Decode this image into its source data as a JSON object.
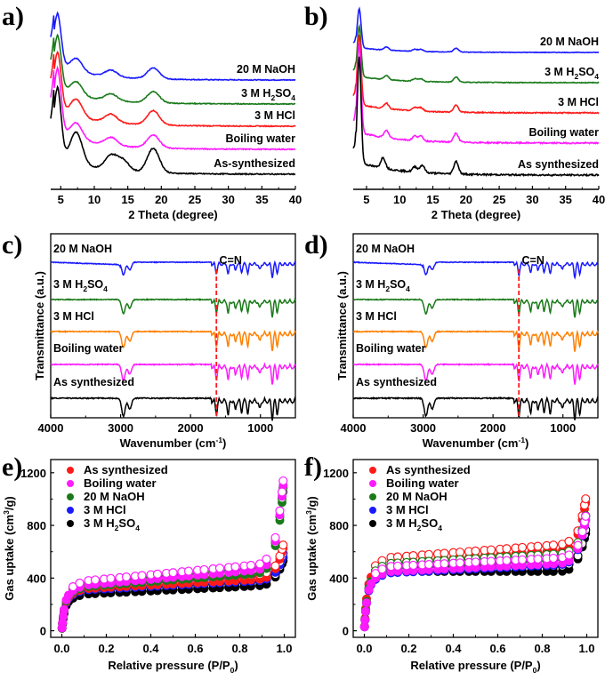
{
  "figure": {
    "panel_labels": [
      "a)",
      "b)",
      "c)",
      "d)",
      "e)",
      "f)"
    ]
  },
  "chart_data": [
    {
      "panel": "a)",
      "type": "line",
      "title": "",
      "xlabel": "2 Theta (degree)",
      "ylabel": "",
      "xlim": [
        3.5,
        40
      ],
      "xticks": [
        5,
        10,
        15,
        20,
        25,
        30,
        35,
        40
      ],
      "stacked_offset": true,
      "series": [
        {
          "name": "20 M NaOH",
          "color": "#1a1aff",
          "peaks": [
            [
              4.5,
              1.0
            ],
            [
              7.3,
              0.25
            ],
            [
              12.5,
              0.12
            ],
            [
              18.8,
              0.2
            ]
          ]
        },
        {
          "name": "3 M H2SO4",
          "color": "#1a7a1a",
          "peaks": [
            [
              4.5,
              1.0
            ],
            [
              7.3,
              0.25
            ],
            [
              12.5,
              0.12
            ],
            [
              18.8,
              0.2
            ]
          ]
        },
        {
          "name": "3 M HCl",
          "color": "#ff1a1a",
          "peaks": [
            [
              4.5,
              1.0
            ],
            [
              7.3,
              0.3
            ],
            [
              12.5,
              0.14
            ],
            [
              18.8,
              0.24
            ]
          ]
        },
        {
          "name": "Boiling water",
          "color": "#ff1aff",
          "peaks": [
            [
              4.5,
              1.0
            ],
            [
              7.3,
              0.25
            ],
            [
              12.5,
              0.12
            ],
            [
              18.8,
              0.2
            ]
          ]
        },
        {
          "name": "As-synthesized",
          "color": "#000000",
          "peaks": [
            [
              4.5,
              1.0
            ],
            [
              7.3,
              0.45
            ],
            [
              12.5,
              0.2
            ],
            [
              14.3,
              0.15
            ],
            [
              18.8,
              0.35
            ]
          ]
        }
      ]
    },
    {
      "panel": "b)",
      "type": "line",
      "title": "",
      "xlabel": "2 Theta (degree)",
      "ylabel": "",
      "xlim": [
        3,
        40
      ],
      "xticks": [
        5,
        10,
        15,
        20,
        25,
        30,
        35,
        40
      ],
      "stacked_offset": true,
      "series": [
        {
          "name": "20 M NaOH",
          "color": "#1a1aff",
          "peaks": [
            [
              3.9,
              1.0
            ],
            [
              8.0,
              0.08
            ],
            [
              12.3,
              0.05
            ],
            [
              13.2,
              0.05
            ],
            [
              18.5,
              0.1
            ]
          ]
        },
        {
          "name": "3 M H2SO4",
          "color": "#1a7a1a",
          "peaks": [
            [
              3.9,
              1.0
            ],
            [
              8.0,
              0.08
            ],
            [
              12.3,
              0.05
            ],
            [
              13.2,
              0.05
            ],
            [
              18.5,
              0.1
            ]
          ]
        },
        {
          "name": "3 M HCl",
          "color": "#ff1a1a",
          "peaks": [
            [
              3.9,
              1.0
            ],
            [
              8.0,
              0.08
            ],
            [
              12.3,
              0.05
            ],
            [
              13.2,
              0.05
            ],
            [
              18.5,
              0.1
            ]
          ]
        },
        {
          "name": "Boiling water",
          "color": "#ff1aff",
          "peaks": [
            [
              3.9,
              1.0
            ],
            [
              8.0,
              0.08
            ],
            [
              12.3,
              0.05
            ],
            [
              13.2,
              0.05
            ],
            [
              18.5,
              0.1
            ]
          ]
        },
        {
          "name": "As synthesized",
          "color": "#000000",
          "peaks": [
            [
              3.9,
              1.0
            ],
            [
              7.5,
              0.1
            ],
            [
              12.3,
              0.05
            ],
            [
              13.4,
              0.07
            ],
            [
              18.5,
              0.12
            ]
          ]
        }
      ]
    },
    {
      "panel": "c)",
      "type": "line",
      "title": "",
      "xlabel": "Wavenumber (cm-1)",
      "ylabel": "Transmittance (a.u.)",
      "xlim": [
        4000,
        500
      ],
      "xticks": [
        4000,
        3000,
        2000,
        1000
      ],
      "annotation": {
        "text": "C=N",
        "x": 1630,
        "style": "red dashed vertical line"
      },
      "series": [
        {
          "name": "20 M NaOH",
          "color": "#1a1aff"
        },
        {
          "name": "3 M H2SO4",
          "color": "#1a7a1a"
        },
        {
          "name": "3 M HCl",
          "color": "#ff8000"
        },
        {
          "name": "Boiling water",
          "color": "#ff1aff"
        },
        {
          "name": "As synthesized",
          "color": "#000000"
        }
      ],
      "dips": [
        [
          2960,
          1.0
        ],
        [
          2870,
          0.6
        ],
        [
          1630,
          0.7
        ],
        [
          1460,
          0.8
        ],
        [
          1360,
          0.5
        ],
        [
          1270,
          0.6
        ],
        [
          1180,
          0.7
        ],
        [
          1010,
          0.5
        ],
        [
          830,
          1.0
        ],
        [
          760,
          0.7
        ]
      ]
    },
    {
      "panel": "d)",
      "type": "line",
      "title": "",
      "xlabel": "Wavenumber (cm-1)",
      "ylabel": "Transmittance (a.u.)",
      "xlim": [
        4000,
        500
      ],
      "xticks": [
        4000,
        3000,
        2000,
        1000
      ],
      "annotation": {
        "text": "C=N",
        "x": 1630,
        "style": "red dashed vertical line"
      },
      "series": [
        {
          "name": "20 M NaOH",
          "color": "#1a1aff"
        },
        {
          "name": "3 M H2SO4",
          "color": "#1a7a1a"
        },
        {
          "name": "3 M HCl",
          "color": "#ff8000"
        },
        {
          "name": "Boiling water",
          "color": "#ff1aff"
        },
        {
          "name": "As synthesized",
          "color": "#000000"
        }
      ],
      "dips": [
        [
          2960,
          1.0
        ],
        [
          2870,
          0.6
        ],
        [
          1630,
          0.8
        ],
        [
          1460,
          0.7
        ],
        [
          1360,
          0.5
        ],
        [
          1270,
          0.6
        ],
        [
          1180,
          0.7
        ],
        [
          1010,
          0.5
        ],
        [
          830,
          1.0
        ],
        [
          760,
          0.7
        ]
      ]
    },
    {
      "panel": "e)",
      "type": "scatter",
      "title": "",
      "xlabel": "Relative pressure (P/P0)",
      "ylabel": "Gas uptake (cm3/g)",
      "xlim": [
        -0.05,
        1.05
      ],
      "ylim": [
        -50,
        1300
      ],
      "xticks": [
        "0.0",
        "0.2",
        "0.4",
        "0.6",
        "0.8",
        "1.0"
      ],
      "yticks": [
        0,
        400,
        800,
        1200
      ],
      "legend": "top-left",
      "note": "filled = adsorption, open = desorption",
      "series": [
        {
          "name": "As synthesized",
          "color": "#ff1a1a",
          "plateau": 310,
          "slope": 90,
          "end": 650
        },
        {
          "name": "Boiling water",
          "color": "#ff1aff",
          "plateau": 330,
          "slope": 150,
          "end": 1180
        },
        {
          "name": "20 M NaOH",
          "color": "#1a7a1a",
          "plateau": 320,
          "slope": 130,
          "end": 1130
        },
        {
          "name": "3 M HCl",
          "color": "#1a1aff",
          "plateau": 300,
          "slope": 90,
          "end": 580
        },
        {
          "name": "3 M H2SO4",
          "color": "#000000",
          "plateau": 270,
          "slope": 80,
          "end": 550
        }
      ]
    },
    {
      "panel": "f)",
      "type": "scatter",
      "title": "",
      "xlabel": "Relative pressure (P/P0)",
      "ylabel": "Gas uptake (cm3/g)",
      "xlim": [
        -0.05,
        1.05
      ],
      "ylim": [
        -50,
        1300
      ],
      "xticks": [
        "0.0",
        "0.2",
        "0.4",
        "0.6",
        "0.8",
        "1.0"
      ],
      "yticks": [
        0,
        400,
        800,
        1200
      ],
      "legend": "top-left",
      "note": "filled = adsorption, open = desorption",
      "series": [
        {
          "name": "As synthesized",
          "color": "#ff1a1a",
          "plateau": 500,
          "slope": 120,
          "end": 1010
        },
        {
          "name": "Boiling water",
          "color": "#ff1aff",
          "plateau": 440,
          "slope": 80,
          "end": 880
        },
        {
          "name": "20 M NaOH",
          "color": "#1a7a1a",
          "plateau": 460,
          "slope": 90,
          "end": 880
        },
        {
          "name": "3 M HCl",
          "color": "#1a1aff",
          "plateau": 430,
          "slope": 80,
          "end": 880
        },
        {
          "name": "3 M H2SO4",
          "color": "#000000",
          "plateau": 450,
          "slope": 0,
          "end": 780
        }
      ]
    }
  ]
}
